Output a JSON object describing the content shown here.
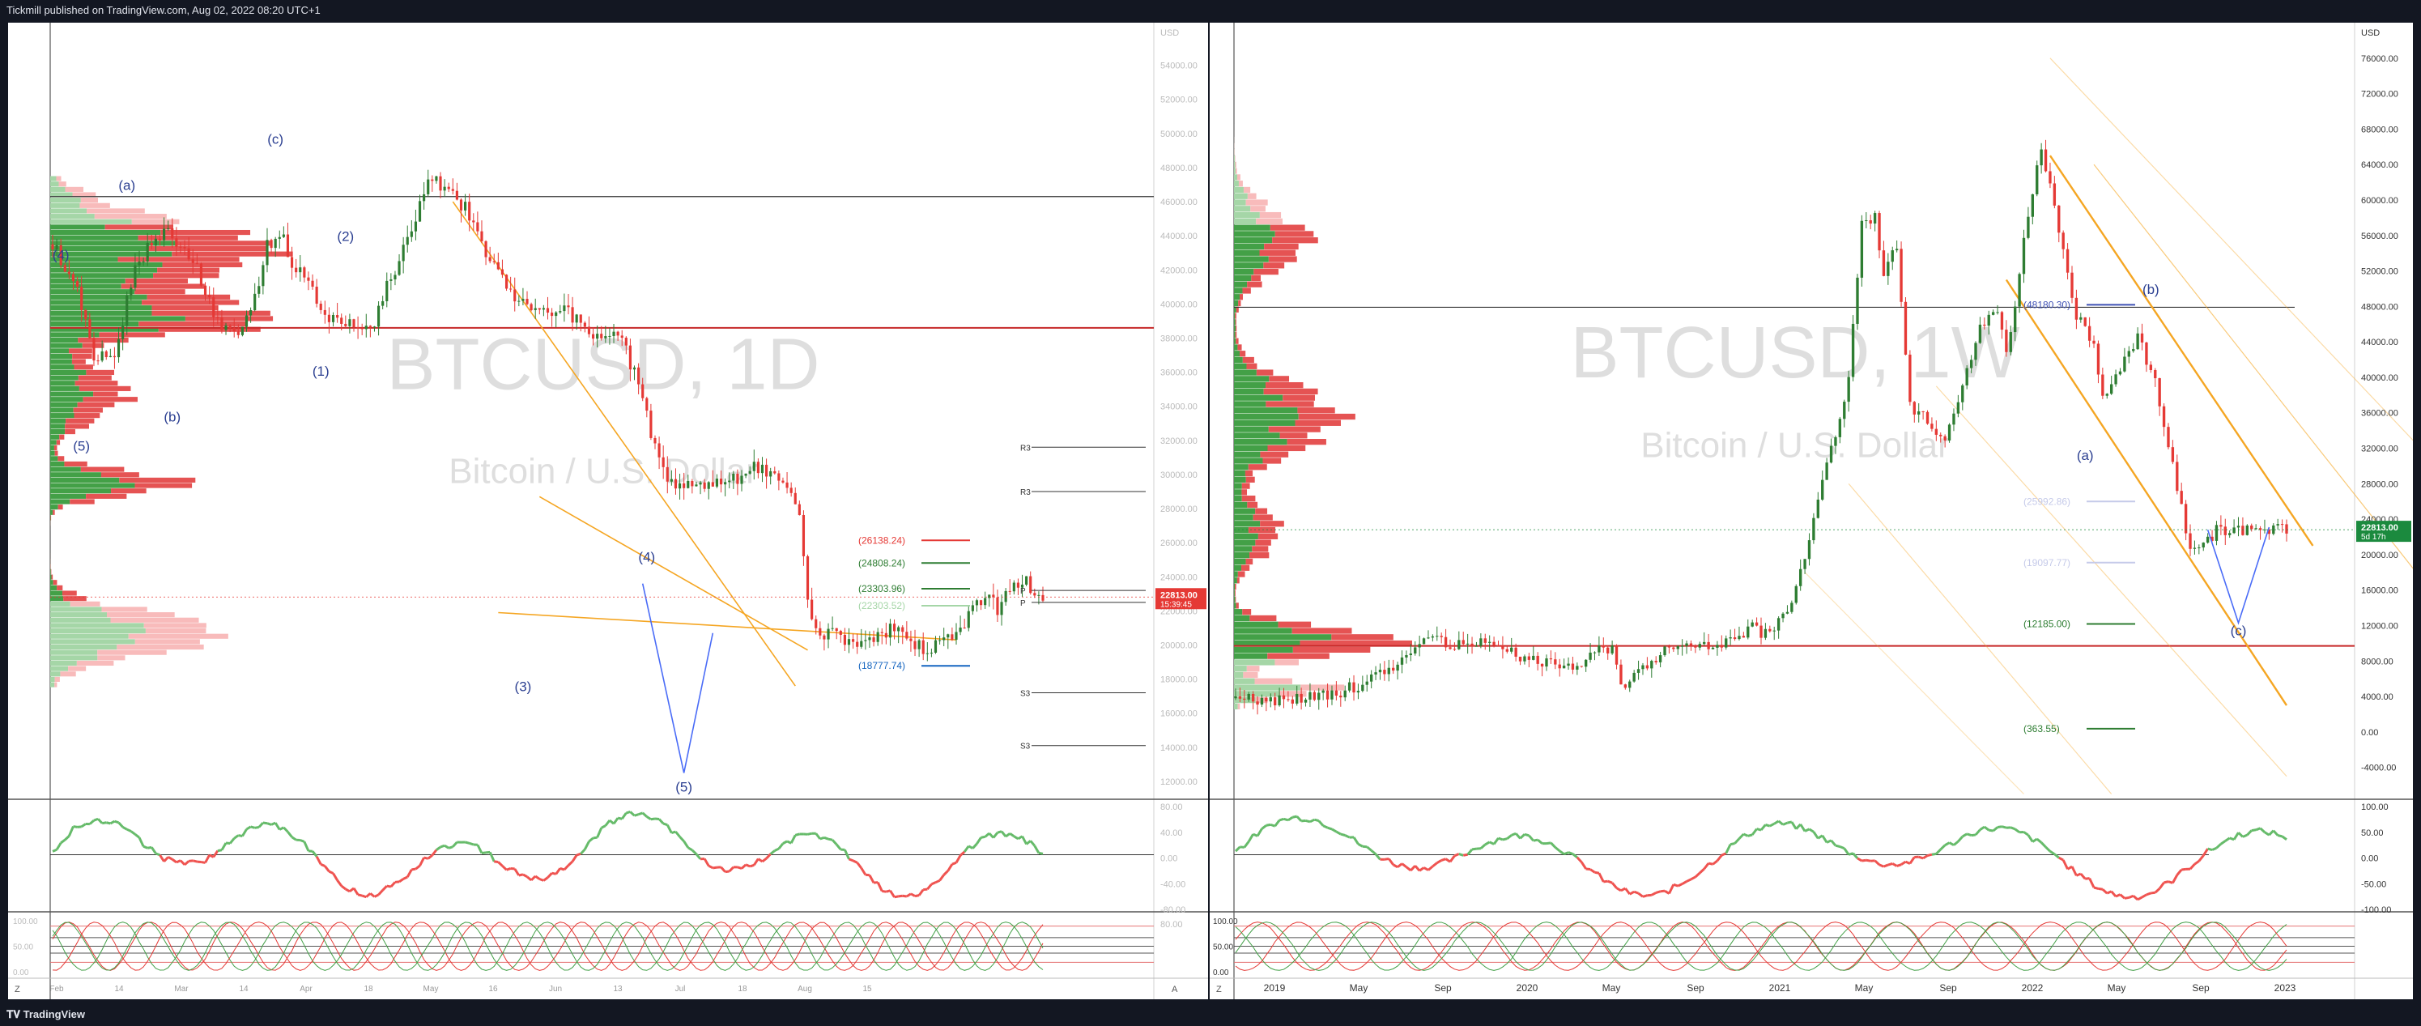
{
  "header": {
    "published_text": "Tickmill published on TradingView.com, Aug 02, 2022 08:20 UTC+1"
  },
  "footer": {
    "brand": "TradingView"
  },
  "colors": {
    "bull": "#2e7d32",
    "bear": "#e53935",
    "channel": "#f5a623",
    "wave_blue": "#3a52a0",
    "rsi_green": "#66bb6a",
    "rsi_red": "#ef5350"
  },
  "chart_data": [
    {
      "type": "candlestick",
      "watermark_symbol": "BTCUSD, 1D",
      "watermark_name": "Bitcoin / U.S. Dollar",
      "currency": "USD",
      "y_ticks": [
        54000,
        52000,
        50000,
        48000,
        46000,
        44000,
        42000,
        40000,
        38000,
        36000,
        34000,
        32000,
        30000,
        28000,
        26000,
        24000,
        22000,
        20000,
        18000,
        16000,
        14000,
        12000
      ],
      "y_tick_labels": [
        "54000.00",
        "52000.00",
        "50000.00",
        "48000.00",
        "46000.00",
        "44000.00",
        "42000.00",
        "40000.00",
        "38000.00",
        "36000.00",
        "34000.00",
        "32000.00",
        "30000.00",
        "28000.00",
        "26000.00",
        "24000.00",
        "22000.00",
        "20000.00",
        "18000.00",
        "16000.00",
        "14000.00",
        "12000.00"
      ],
      "ylim": [
        11000,
        56500
      ],
      "x_labels": [
        "Feb",
        "14",
        "Mar",
        "14",
        "Apr",
        "18",
        "May",
        "16",
        "Jun",
        "13",
        "Jul",
        "18",
        "Aug",
        "15"
      ],
      "last_price": "22813.00",
      "countdown": "15:39:45",
      "close_path": [
        [
          0,
          43500
        ],
        [
          6,
          41000
        ],
        [
          10,
          36800
        ],
        [
          15,
          37200
        ],
        [
          20,
          42000
        ],
        [
          24,
          43800
        ],
        [
          28,
          44200
        ],
        [
          33,
          43000
        ],
        [
          36,
          41500
        ],
        [
          40,
          38800
        ],
        [
          44,
          38000
        ],
        [
          48,
          39500
        ],
        [
          52,
          43500
        ],
        [
          55,
          44200
        ],
        [
          58,
          42500
        ],
        [
          62,
          41000
        ],
        [
          66,
          39400
        ],
        [
          70,
          38900
        ],
        [
          74,
          38600
        ],
        [
          78,
          38900
        ],
        [
          80,
          40500
        ],
        [
          84,
          42500
        ],
        [
          88,
          45000
        ],
        [
          92,
          47500
        ],
        [
          94,
          47000
        ],
        [
          97,
          46200
        ],
        [
          100,
          45700
        ],
        [
          104,
          43300
        ],
        [
          108,
          41800
        ],
        [
          112,
          40600
        ],
        [
          116,
          39800
        ],
        [
          120,
          39600
        ],
        [
          124,
          39600
        ],
        [
          128,
          39000
        ],
        [
          132,
          38100
        ],
        [
          136,
          38500
        ],
        [
          138,
          38300
        ],
        [
          140,
          36500
        ],
        [
          143,
          34700
        ],
        [
          146,
          31500
        ],
        [
          150,
          29300
        ],
        [
          155,
          29700
        ],
        [
          160,
          29400
        ],
        [
          165,
          29600
        ],
        [
          170,
          30300
        ],
        [
          175,
          30100
        ],
        [
          178,
          29200
        ],
        [
          181,
          27800
        ],
        [
          183,
          22500
        ],
        [
          186,
          20700
        ],
        [
          190,
          20800
        ],
        [
          195,
          19700
        ],
        [
          200,
          20500
        ],
        [
          204,
          20900
        ],
        [
          208,
          20300
        ],
        [
          212,
          19500
        ],
        [
          215,
          20600
        ],
        [
          219,
          20500
        ],
        [
          222,
          21800
        ],
        [
          226,
          22700
        ],
        [
          229,
          22200
        ],
        [
          232,
          23200
        ],
        [
          235,
          23900
        ],
        [
          237,
          23300
        ],
        [
          240,
          22813
        ]
      ],
      "wave_labels": [
        {
          "text": "(4)",
          "day": 2,
          "price": 42600
        },
        {
          "text": "(a)",
          "day": 18,
          "price": 46700
        },
        {
          "text": "(c)",
          "day": 54,
          "price": 49400
        },
        {
          "text": "(2)",
          "day": 71,
          "price": 43700
        },
        {
          "text": "(1)",
          "day": 65,
          "price": 35800
        },
        {
          "text": "(b)",
          "day": 29,
          "price": 33100
        },
        {
          "text": "(5)",
          "day": 7,
          "price": 31400
        },
        {
          "text": "(3)",
          "day": 114,
          "price": 17300
        },
        {
          "text": "(4)",
          "day": 144,
          "price": 24900
        },
        {
          "text": "(5)",
          "day": 153,
          "price": 11400
        }
      ],
      "levels": [
        {
          "label": "(26138.24)",
          "price": 26138.24,
          "color": "#e53935"
        },
        {
          "label": "(24808.24)",
          "price": 24808.24,
          "color": "#2e7d32"
        },
        {
          "label": "(23303.96)",
          "price": 23303.96,
          "color": "#2e7d32"
        },
        {
          "label": "(22303.52)",
          "price": 22303.52,
          "color": "#a5d6a7"
        },
        {
          "label": "(18777.74)",
          "price": 18777.74,
          "color": "#1565c0"
        }
      ],
      "pivots": [
        {
          "label": "R3",
          "price": 31600
        },
        {
          "label": "R3",
          "price": 29000
        },
        {
          "label": "P",
          "price": 23200
        },
        {
          "label": "P",
          "price": 22500
        },
        {
          "label": "S3",
          "price": 17200
        },
        {
          "label": "S3",
          "price": 14100
        }
      ],
      "hlines": [
        {
          "price": 46300,
          "color": "#333333"
        },
        {
          "price": 38600,
          "color": "#c62828"
        }
      ],
      "forecast_path": [
        [
          143,
          23600
        ],
        [
          153,
          12500
        ],
        [
          160,
          20700
        ]
      ],
      "rsi_ticks": [
        "80.00",
        "40.00",
        "0.00",
        "-40.00",
        "-80.00"
      ],
      "stoch_ticks": [
        "100.00",
        "50.00",
        "0.00"
      ],
      "stoch_ticks_right": [
        "80.00"
      ],
      "corner_labels": [
        "Z",
        "A"
      ]
    },
    {
      "type": "candlestick",
      "watermark_symbol": "BTCUSD, 1W",
      "watermark_name": "Bitcoin / U.S. Dollar",
      "currency": "USD",
      "y_ticks": [
        76000,
        72000,
        68000,
        64000,
        60000,
        56000,
        52000,
        48000,
        44000,
        40000,
        36000,
        32000,
        28000,
        24000,
        20000,
        16000,
        12000,
        8000,
        4000,
        0,
        -4000
      ],
      "y_tick_labels": [
        "76000.00",
        "72000.00",
        "68000.00",
        "64000.00",
        "60000.00",
        "56000.00",
        "52000.00",
        "48000.00",
        "44000.00",
        "40000.00",
        "36000.00",
        "32000.00",
        "28000.00",
        "24000.00",
        "20000.00",
        "16000.00",
        "12000.00",
        "8000.00",
        "4000.00",
        "0.00",
        "-4000.00"
      ],
      "ylim": [
        -7500,
        80000
      ],
      "x_labels": [
        "2019",
        "May",
        "Sep",
        "2020",
        "May",
        "Sep",
        "2021",
        "May",
        "Sep",
        "2022",
        "May",
        "Sep",
        "2023"
      ],
      "last_price": "22813.00",
      "countdown": "5d 17h",
      "close_path": [
        [
          0,
          3800
        ],
        [
          10,
          3600
        ],
        [
          20,
          4000
        ],
        [
          30,
          5500
        ],
        [
          38,
          8000
        ],
        [
          45,
          11000
        ],
        [
          50,
          9700
        ],
        [
          58,
          10200
        ],
        [
          66,
          8300
        ],
        [
          72,
          7900
        ],
        [
          78,
          7200
        ],
        [
          82,
          9300
        ],
        [
          86,
          9600
        ],
        [
          88,
          5000
        ],
        [
          92,
          6800
        ],
        [
          98,
          9300
        ],
        [
          104,
          9500
        ],
        [
          110,
          9800
        ],
        [
          114,
          10200
        ],
        [
          118,
          11700
        ],
        [
          122,
          10700
        ],
        [
          126,
          13700
        ],
        [
          130,
          19000
        ],
        [
          134,
          29000
        ],
        [
          138,
          35000
        ],
        [
          140,
          40000
        ],
        [
          143,
          57000
        ],
        [
          146,
          58000
        ],
        [
          148,
          52000
        ],
        [
          151,
          55000
        ],
        [
          154,
          37000
        ],
        [
          158,
          35000
        ],
        [
          162,
          33000
        ],
        [
          166,
          39000
        ],
        [
          170,
          46000
        ],
        [
          174,
          47000
        ],
        [
          176,
          43000
        ],
        [
          178,
          48500
        ],
        [
          180,
          56000
        ],
        [
          182,
          61000
        ],
        [
          184,
          66000
        ],
        [
          188,
          57000
        ],
        [
          192,
          47000
        ],
        [
          196,
          44000
        ],
        [
          198,
          38000
        ],
        [
          202,
          41000
        ],
        [
          206,
          44500
        ],
        [
          210,
          39500
        ],
        [
          214,
          30000
        ],
        [
          218,
          20500
        ],
        [
          221,
          21000
        ],
        [
          224,
          22813
        ]
      ],
      "wave_labels": [
        {
          "text": "(b)",
          "week": 209,
          "price": 49400
        },
        {
          "text": "(a)",
          "week": 194,
          "price": 30700
        },
        {
          "text": "(c)",
          "week": 229,
          "price": 10900
        }
      ],
      "levels": [
        {
          "label": "(48180.30)",
          "price": 48180.3,
          "color": "#3f51b5"
        },
        {
          "label": "(25992.86)",
          "price": 25992.86,
          "color": "#c5cae9"
        },
        {
          "label": "(19097.77)",
          "price": 19097.77,
          "color": "#c5cae9"
        },
        {
          "label": "(12185.00)",
          "price": 12185,
          "color": "#2e7d32"
        },
        {
          "label": "(363.55)",
          "price": 363.55,
          "color": "#2e7d32"
        }
      ],
      "hlines": [
        {
          "price": 47900,
          "color": "#333333"
        },
        {
          "price": 9700,
          "color": "#c62828"
        }
      ],
      "forecast_path": [
        [
          222,
          22800
        ],
        [
          229,
          12300
        ],
        [
          236,
          23100
        ]
      ],
      "rsi_ticks": [
        "100.00",
        "50.00",
        "0.00",
        "-50.00",
        "-100.00"
      ],
      "stoch_ticks": [
        "100.00",
        "50.00",
        "0.00"
      ],
      "corner_labels": [
        "Z"
      ]
    }
  ]
}
